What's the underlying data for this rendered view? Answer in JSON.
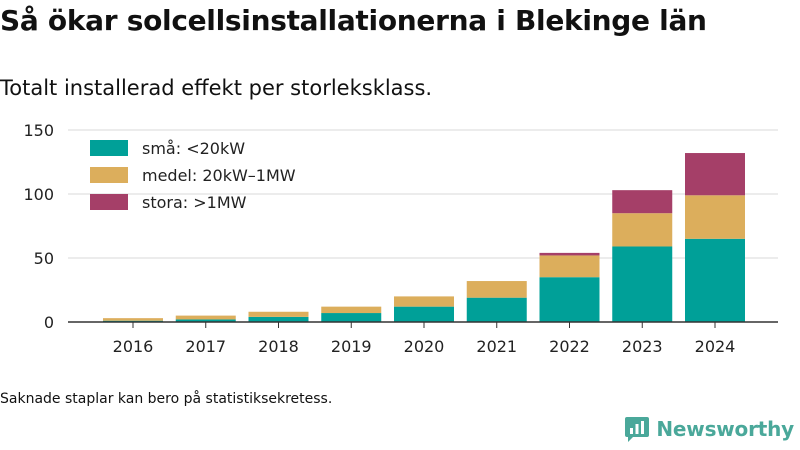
{
  "page": {
    "title": "Så ökar solcellsinstallationerna i Blekinge län",
    "subtitle": "Totalt installerad effekt per storleksklass.",
    "footnote": "Saknade staplar kan bero på statistiksekretess.",
    "brand": "Newsworthy",
    "brand_icon": "newsworthy-logo-icon"
  },
  "chart_data": {
    "type": "bar",
    "stacked": true,
    "categories": [
      "2016",
      "2017",
      "2018",
      "2019",
      "2020",
      "2021",
      "2022",
      "2023",
      "2024"
    ],
    "series": [
      {
        "name": "små: <20kW",
        "color": "#00a098",
        "values": [
          1,
          2,
          4,
          7,
          12,
          19,
          35,
          59,
          65
        ]
      },
      {
        "name": "medel: 20kW–1MW",
        "color": "#dcae5c",
        "values": [
          2,
          3,
          4,
          5,
          8,
          13,
          17,
          26,
          34
        ]
      },
      {
        "name": "stora: >1MW",
        "color": "#a53f68",
        "values": [
          0,
          0,
          0,
          0,
          0,
          0,
          2,
          18,
          33
        ]
      }
    ],
    "ylim": [
      0,
      150
    ],
    "yticks": [
      0,
      50,
      100,
      150
    ],
    "grid": true,
    "legend": "top-left"
  }
}
